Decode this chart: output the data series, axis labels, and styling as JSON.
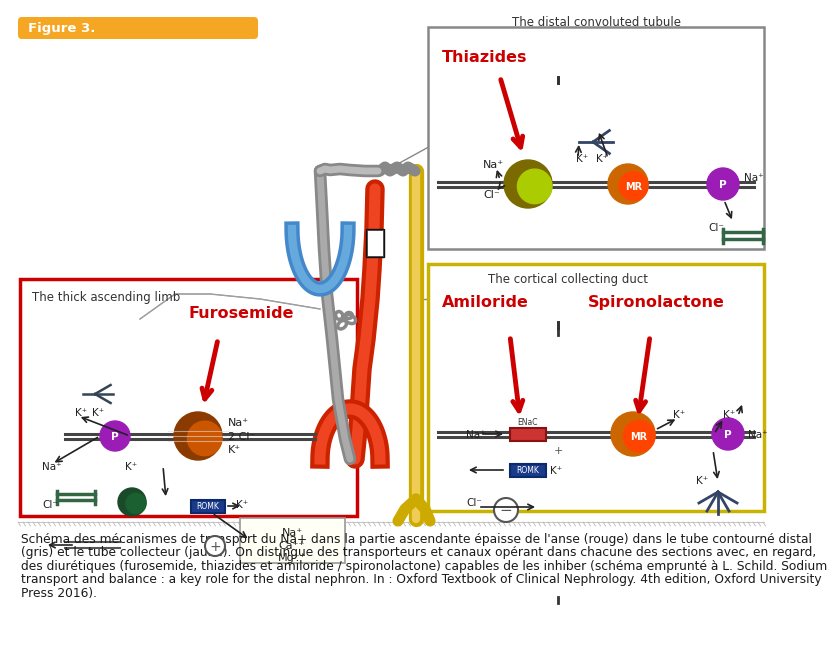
{
  "title": "Figure 3.",
  "title_bg": "#F5A623",
  "title_color": "#FFFFFF",
  "bg_color": "#FFFFFF",
  "caption_line1": "Schéma des mécanismes de transport du Na+ dans la partie ascendante épaisse de l'anse (rouge) dans le tube contourné distal",
  "caption_line2": "(gris) et le tube collecteur (jaune). On distingue des transporteurs et canaux opérant dans chacune des sections avec, en regard,",
  "caption_line3": "des diurétiques (furosemide, thiazides et amiloride / spironolactone) capables de les inhiber (schéma emprunté à L. Schild. Sodium",
  "caption_line4": "transport and balance : a key role for the distal nephron. In : Oxford Textbook of Clinical Nephrology. 4th edition, Oxford University",
  "caption_line5": "Press 2016).",
  "caption_fontsize": 8.8,
  "box1_label": "The thick ascending limb",
  "box1_drug": "Furosemide",
  "box1_edgecolor": "#CC0000",
  "box2_label": "The distal convoluted tubule",
  "box2_drug": "Thiazides",
  "box2_edgecolor": "#888888",
  "box3_label": "The cortical collecting duct",
  "box3_drug1": "Amiloride",
  "box3_drug2": "Spironolactone",
  "box3_edgecolor": "#C8B400",
  "drug_color": "#CC0000",
  "pump_color": "#9B1DB5",
  "mr_color1": "#CC6600",
  "mr_color2": "#FF4400",
  "nacl_color1": "#8B7000",
  "nacl_color2": "#AACC00",
  "nk2cl_color1": "#8B3A00",
  "nk2cl_color2": "#CC5500",
  "enac_color": "#2255AA",
  "romk_color": "#2255AA",
  "beam_color": "#C5E8F5",
  "beam_alpha": 0.7,
  "nephron_red": "#CC2200",
  "nephron_blue": "#4488CC",
  "nephron_grey": "#888888",
  "nephron_yellow": "#CCAA00",
  "separator_color": "#BBBBBB"
}
